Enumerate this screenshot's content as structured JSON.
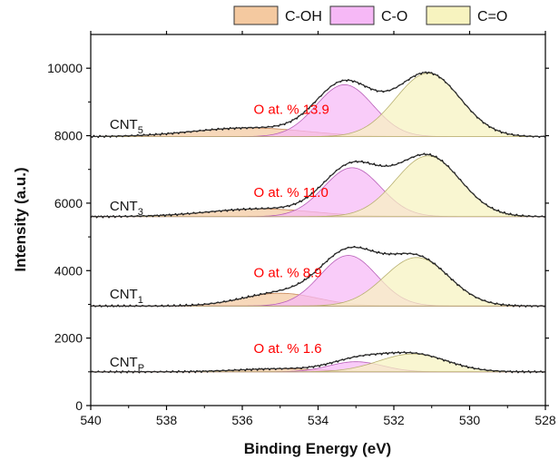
{
  "chart_data": {
    "type": "line",
    "xlabel": "Binding Energy (eV)",
    "ylabel": "Intensity (a.u.)",
    "xlim": [
      540,
      528
    ],
    "ylim": [
      0,
      11000
    ],
    "x_reversed": true,
    "xticks": [
      540,
      538,
      536,
      534,
      532,
      530,
      528
    ],
    "yticks": [
      0,
      2000,
      4000,
      6000,
      8000,
      10000
    ],
    "grid": false,
    "legend_position": "top",
    "legend": [
      {
        "name": "C-OH",
        "color": "#f4c9a0"
      },
      {
        "name": "C-O",
        "color": "#f6b8f6"
      },
      {
        "name": "C=O",
        "color": "#f7f3bf"
      }
    ],
    "annotation_color": "#ff0000",
    "samples": [
      {
        "name": "CNT",
        "subscript": "P",
        "annotation": "O at. % 1.6",
        "label_at": [
          539.5,
          1160
        ],
        "annotation_at": [
          535.7,
          1560
        ],
        "baseline": 1000,
        "components": [
          {
            "name": "C-OH",
            "center": 535.0,
            "height": 90,
            "sigma": 1.1
          },
          {
            "name": "C-O",
            "center": 533.0,
            "height": 300,
            "sigma": 0.7
          },
          {
            "name": "C=O",
            "center": 531.5,
            "height": 530,
            "sigma": 0.9
          }
        ]
      },
      {
        "name": "CNT",
        "subscript": "1",
        "annotation": "O at. % 8.9",
        "label_at": [
          539.5,
          3170
        ],
        "annotation_at": [
          535.7,
          3800
        ],
        "baseline": 2950,
        "components": [
          {
            "name": "C-OH",
            "center": 535.0,
            "height": 380,
            "sigma": 1.0
          },
          {
            "name": "C-O",
            "center": 533.2,
            "height": 1500,
            "sigma": 0.75
          },
          {
            "name": "C=O",
            "center": 531.4,
            "height": 1440,
            "sigma": 0.85
          }
        ]
      },
      {
        "name": "CNT",
        "subscript": "3",
        "annotation": "O at. % 11.0",
        "label_at": [
          539.5,
          5780
        ],
        "annotation_at": [
          535.7,
          6190
        ],
        "baseline": 5600,
        "components": [
          {
            "name": "C-OH",
            "center": 535.5,
            "height": 230,
            "sigma": 1.4
          },
          {
            "name": "C-O",
            "center": 533.1,
            "height": 1450,
            "sigma": 0.75
          },
          {
            "name": "C=O",
            "center": 531.1,
            "height": 1800,
            "sigma": 0.85
          }
        ]
      },
      {
        "name": "CNT",
        "subscript": "5",
        "annotation": "O at. % 13.9",
        "label_at": [
          539.5,
          8200
        ],
        "annotation_at": [
          535.7,
          8650
        ],
        "baseline": 7970,
        "components": [
          {
            "name": "C-OH",
            "center": 535.8,
            "height": 260,
            "sigma": 1.5
          },
          {
            "name": "C-O",
            "center": 533.3,
            "height": 1540,
            "sigma": 0.75
          },
          {
            "name": "C=O",
            "center": 531.1,
            "height": 1880,
            "sigma": 0.85
          }
        ]
      }
    ]
  }
}
